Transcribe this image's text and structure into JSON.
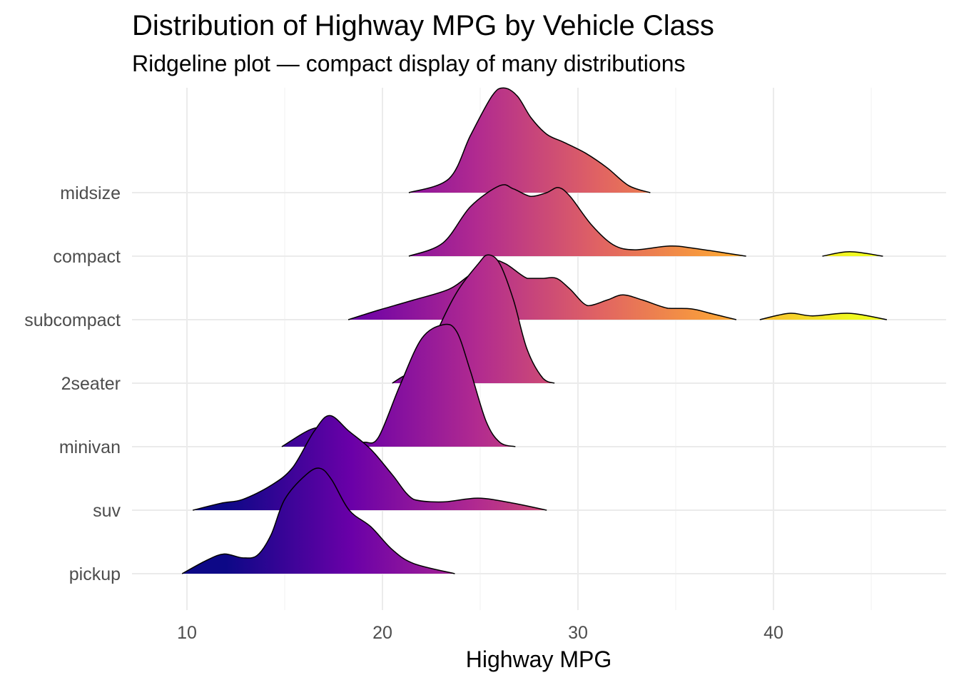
{
  "chart_data": {
    "type": "ridgeline",
    "title": "Distribution of Highway MPG by Vehicle Class",
    "subtitle": "Ridgeline plot — compact display of many distributions",
    "xlabel": "Highway MPG",
    "ylabel": "",
    "xlim": [
      7.2,
      48.8
    ],
    "xticks": [
      10,
      20,
      30,
      40
    ],
    "grid": true,
    "fill_scale": {
      "name": "plasma",
      "range": [
        12,
        44
      ],
      "colors": [
        "#0d0887",
        "#6a00a8",
        "#b12a90",
        "#e16462",
        "#fca636",
        "#f0f921"
      ]
    },
    "outline_color": "#000000",
    "categories": [
      "midsize",
      "compact",
      "subcompact",
      "2seater",
      "minivan",
      "suv",
      "pickup"
    ],
    "series": [
      {
        "name": "midsize",
        "segments": [
          [
            [
              21.35,
              0
            ],
            [
              23.4,
              0.22
            ],
            [
              24.5,
              0.9
            ],
            [
              25.6,
              1.52
            ],
            [
              26.2,
              1.65
            ],
            [
              26.9,
              1.52
            ],
            [
              27.6,
              1.18
            ],
            [
              28.4,
              0.92
            ],
            [
              29.3,
              0.79
            ],
            [
              30.4,
              0.62
            ],
            [
              31.5,
              0.39
            ],
            [
              32.6,
              0.11
            ],
            [
              33.7,
              0
            ]
          ]
        ]
      },
      {
        "name": "compact",
        "segments": [
          [
            [
              21.35,
              0
            ],
            [
              23.1,
              0.21
            ],
            [
              24.5,
              0.78
            ],
            [
              26,
              1.11
            ],
            [
              26.7,
              1.06
            ],
            [
              27.6,
              0.94
            ],
            [
              28.4,
              1.0
            ],
            [
              29,
              1.08
            ],
            [
              29.6,
              0.94
            ],
            [
              30.7,
              0.49
            ],
            [
              31.8,
              0.18
            ],
            [
              32.9,
              0.1
            ],
            [
              34.7,
              0.16
            ],
            [
              36,
              0.12
            ],
            [
              38.6,
              0
            ]
          ],
          [
            [
              42.5,
              0
            ],
            [
              43.9,
              0.07
            ],
            [
              45.6,
              0
            ]
          ]
        ]
      },
      {
        "name": "subcompact",
        "segments": [
          [
            [
              18.25,
              0
            ],
            [
              19.8,
              0.15
            ],
            [
              21.6,
              0.31
            ],
            [
              23.4,
              0.48
            ],
            [
              24.5,
              0.71
            ],
            [
              25.6,
              0.92
            ],
            [
              26.3,
              0.88
            ],
            [
              27.4,
              0.65
            ],
            [
              28.2,
              0.65
            ],
            [
              28.9,
              0.65
            ],
            [
              29.6,
              0.48
            ],
            [
              30.5,
              0.22
            ],
            [
              31.5,
              0.31
            ],
            [
              32.3,
              0.39
            ],
            [
              33.3,
              0.31
            ],
            [
              34.6,
              0.18
            ],
            [
              35.8,
              0.17
            ],
            [
              36.9,
              0.09
            ],
            [
              38.1,
              0
            ]
          ],
          [
            [
              39.3,
              0
            ],
            [
              40.8,
              0.1
            ],
            [
              42,
              0.06
            ],
            [
              43.9,
              0.1
            ],
            [
              45.8,
              0
            ]
          ]
        ]
      },
      {
        "name": "2seater",
        "segments": [
          [
            [
              20.5,
              0
            ],
            [
              21.2,
              0.13
            ],
            [
              22,
              0.19
            ],
            [
              22.7,
              0.75
            ],
            [
              23.8,
              1.43
            ],
            [
              24.9,
              1.88
            ],
            [
              25.4,
              2.02
            ],
            [
              26,
              1.88
            ],
            [
              26.7,
              1.31
            ],
            [
              27.4,
              0.53
            ],
            [
              28.2,
              0.08
            ],
            [
              28.8,
              0
            ]
          ]
        ]
      },
      {
        "name": "minivan",
        "segments": [
          [
            [
              14.85,
              0
            ],
            [
              16.5,
              0.29
            ],
            [
              17.5,
              0.2
            ],
            [
              18.5,
              0.1
            ],
            [
              19.1,
              0.07
            ],
            [
              19.8,
              0.15
            ],
            [
              20.9,
              0.97
            ],
            [
              22,
              1.7
            ],
            [
              23.1,
              1.92
            ],
            [
              23.8,
              1.81
            ],
            [
              24.5,
              1.19
            ],
            [
              25.3,
              0.4
            ],
            [
              26,
              0.07
            ],
            [
              26.8,
              0
            ]
          ]
        ]
      },
      {
        "name": "suv",
        "segments": [
          [
            [
              10.3,
              0
            ],
            [
              11.75,
              0.11
            ],
            [
              12.85,
              0.17
            ],
            [
              14.3,
              0.39
            ],
            [
              15.4,
              0.67
            ],
            [
              16.5,
              1.24
            ],
            [
              17.3,
              1.49
            ],
            [
              18.3,
              1.24
            ],
            [
              19.4,
              0.96
            ],
            [
              20.5,
              0.56
            ],
            [
              21.6,
              0.17
            ],
            [
              23.1,
              0.13
            ],
            [
              24.9,
              0.19
            ],
            [
              26.7,
              0.11
            ],
            [
              28.4,
              0
            ]
          ]
        ]
      },
      {
        "name": "pickup",
        "segments": [
          [
            [
              9.75,
              0
            ],
            [
              11,
              0.21
            ],
            [
              11.9,
              0.31
            ],
            [
              12.85,
              0.25
            ],
            [
              13.6,
              0.29
            ],
            [
              14.3,
              0.61
            ],
            [
              15,
              1.17
            ],
            [
              16.1,
              1.56
            ],
            [
              16.8,
              1.66
            ],
            [
              17.4,
              1.48
            ],
            [
              18.3,
              1.0
            ],
            [
              19.4,
              0.74
            ],
            [
              20.5,
              0.38
            ],
            [
              21.6,
              0.16
            ],
            [
              23.7,
              0
            ]
          ]
        ]
      }
    ]
  }
}
